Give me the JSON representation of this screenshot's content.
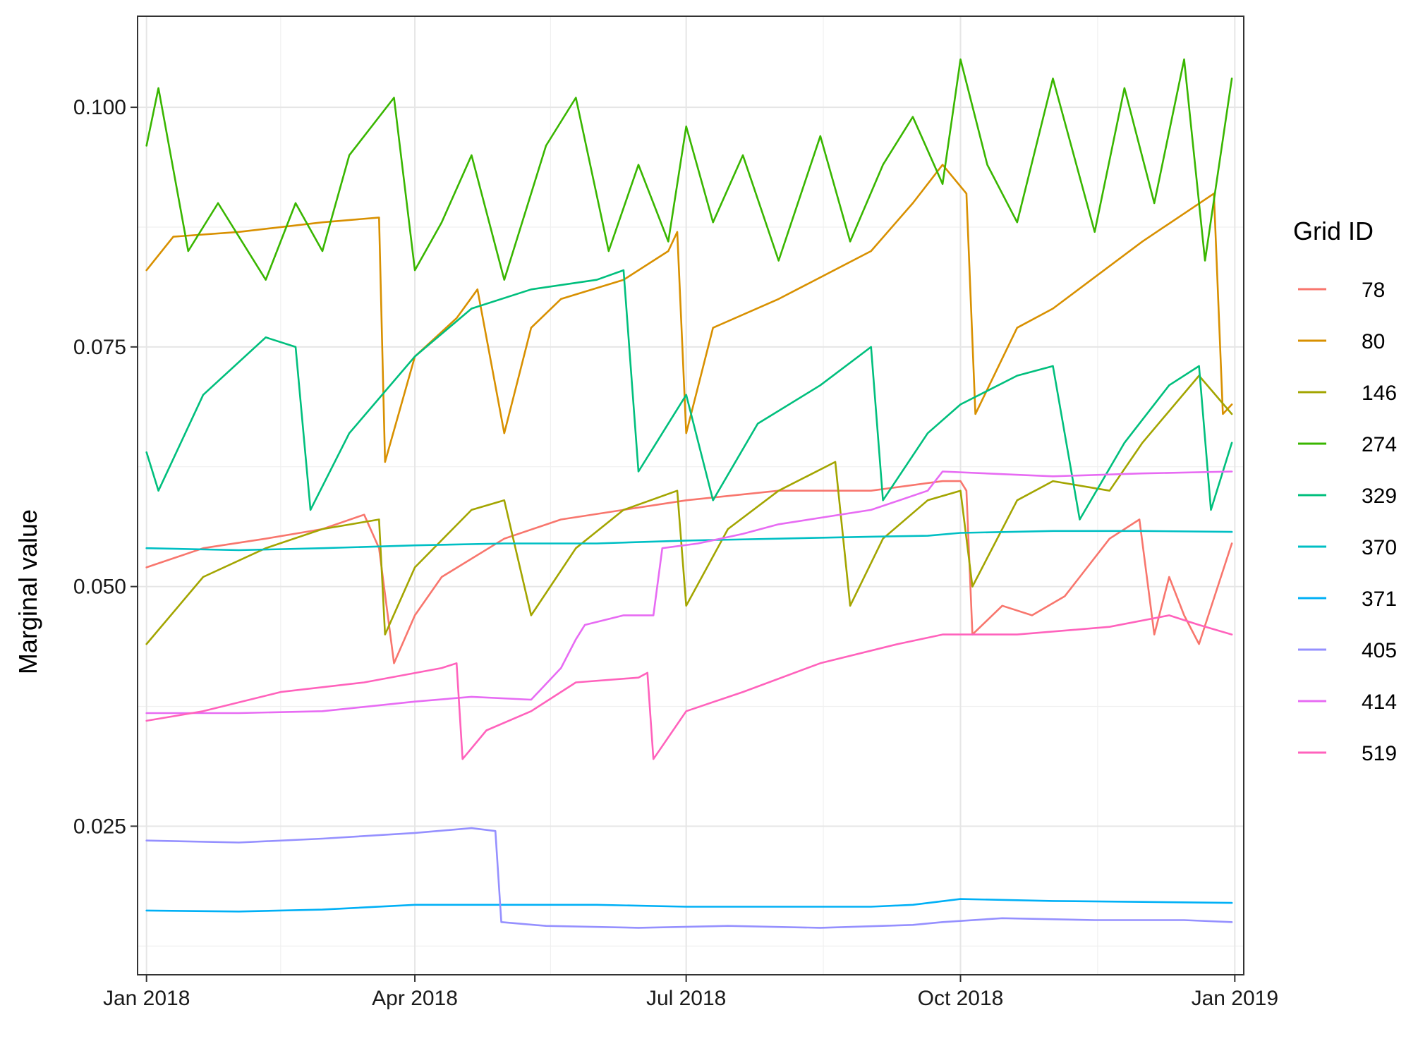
{
  "chart_data": {
    "type": "line",
    "title": "",
    "xlabel": "",
    "ylabel": "Marginal value",
    "x_axis": {
      "type": "date",
      "range": [
        "2017-12-29",
        "2019-01-04"
      ],
      "ticks": [
        {
          "date": "2018-01-01",
          "label": "Jan 2018"
        },
        {
          "date": "2018-04-01",
          "label": "Apr 2018"
        },
        {
          "date": "2018-07-01",
          "label": "Jul 2018"
        },
        {
          "date": "2018-10-01",
          "label": "Oct 2018"
        },
        {
          "date": "2019-01-01",
          "label": "Jan 2019"
        }
      ]
    },
    "y_axis": {
      "range": [
        0.0095,
        0.1095
      ],
      "ticks": [
        {
          "value": 0.025,
          "label": "0.025"
        },
        {
          "value": 0.05,
          "label": "0.050"
        },
        {
          "value": 0.075,
          "label": "0.075"
        },
        {
          "value": 0.1,
          "label": "0.100"
        }
      ]
    },
    "grid": true,
    "legend": {
      "title": "Grid ID",
      "position": "right"
    },
    "series": [
      {
        "name": "78",
        "color": "#F8766D",
        "points": [
          [
            "2018-01-01",
            0.052
          ],
          [
            "2018-01-20",
            0.054
          ],
          [
            "2018-02-10",
            0.055
          ],
          [
            "2018-03-01",
            0.056
          ],
          [
            "2018-03-15",
            0.0575
          ],
          [
            "2018-03-20",
            0.054
          ],
          [
            "2018-03-25",
            0.042
          ],
          [
            "2018-04-01",
            0.047
          ],
          [
            "2018-04-10",
            0.051
          ],
          [
            "2018-05-01",
            0.055
          ],
          [
            "2018-05-20",
            0.057
          ],
          [
            "2018-06-10",
            0.058
          ],
          [
            "2018-07-01",
            0.059
          ],
          [
            "2018-08-01",
            0.06
          ],
          [
            "2018-09-01",
            0.06
          ],
          [
            "2018-09-25",
            0.061
          ],
          [
            "2018-10-01",
            0.061
          ],
          [
            "2018-10-03",
            0.06
          ],
          [
            "2018-10-05",
            0.045
          ],
          [
            "2018-10-15",
            0.048
          ],
          [
            "2018-10-25",
            0.047
          ],
          [
            "2018-11-05",
            0.049
          ],
          [
            "2018-11-20",
            0.055
          ],
          [
            "2018-11-30",
            0.057
          ],
          [
            "2018-12-05",
            0.045
          ],
          [
            "2018-12-10",
            0.051
          ],
          [
            "2018-12-15",
            0.047
          ],
          [
            "2018-12-20",
            0.044
          ],
          [
            "2018-12-31",
            0.0545
          ]
        ]
      },
      {
        "name": "80",
        "color": "#D89000",
        "points": [
          [
            "2018-01-01",
            0.083
          ],
          [
            "2018-01-10",
            0.0865
          ],
          [
            "2018-02-01",
            0.087
          ],
          [
            "2018-03-01",
            0.088
          ],
          [
            "2018-03-20",
            0.0885
          ],
          [
            "2018-03-22",
            0.063
          ],
          [
            "2018-04-01",
            0.074
          ],
          [
            "2018-04-15",
            0.078
          ],
          [
            "2018-04-22",
            0.081
          ],
          [
            "2018-05-01",
            0.066
          ],
          [
            "2018-05-10",
            0.077
          ],
          [
            "2018-05-20",
            0.08
          ],
          [
            "2018-06-10",
            0.082
          ],
          [
            "2018-06-25",
            0.085
          ],
          [
            "2018-06-28",
            0.087
          ],
          [
            "2018-07-01",
            0.066
          ],
          [
            "2018-07-10",
            0.077
          ],
          [
            "2018-08-01",
            0.08
          ],
          [
            "2018-09-01",
            0.085
          ],
          [
            "2018-09-15",
            0.09
          ],
          [
            "2018-09-25",
            0.094
          ],
          [
            "2018-10-03",
            0.091
          ],
          [
            "2018-10-06",
            0.068
          ],
          [
            "2018-10-20",
            0.077
          ],
          [
            "2018-11-01",
            0.079
          ],
          [
            "2018-12-01",
            0.086
          ],
          [
            "2018-12-25",
            0.091
          ],
          [
            "2018-12-28",
            0.068
          ],
          [
            "2018-12-31",
            0.069
          ]
        ]
      },
      {
        "name": "146",
        "color": "#A3A500",
        "points": [
          [
            "2018-01-01",
            0.044
          ],
          [
            "2018-01-20",
            0.051
          ],
          [
            "2018-02-10",
            0.054
          ],
          [
            "2018-03-01",
            0.056
          ],
          [
            "2018-03-20",
            0.057
          ],
          [
            "2018-03-22",
            0.045
          ],
          [
            "2018-04-01",
            0.052
          ],
          [
            "2018-04-20",
            0.058
          ],
          [
            "2018-05-01",
            0.059
          ],
          [
            "2018-05-10",
            0.047
          ],
          [
            "2018-05-25",
            0.054
          ],
          [
            "2018-06-10",
            0.058
          ],
          [
            "2018-06-28",
            0.06
          ],
          [
            "2018-07-01",
            0.048
          ],
          [
            "2018-07-15",
            0.056
          ],
          [
            "2018-08-01",
            0.06
          ],
          [
            "2018-08-20",
            0.063
          ],
          [
            "2018-08-25",
            0.048
          ],
          [
            "2018-09-05",
            0.055
          ],
          [
            "2018-09-20",
            0.059
          ],
          [
            "2018-10-01",
            0.06
          ],
          [
            "2018-10-05",
            0.05
          ],
          [
            "2018-10-20",
            0.059
          ],
          [
            "2018-11-01",
            0.061
          ],
          [
            "2018-11-20",
            0.06
          ],
          [
            "2018-12-01",
            0.065
          ],
          [
            "2018-12-20",
            0.072
          ],
          [
            "2018-12-31",
            0.068
          ]
        ]
      },
      {
        "name": "274",
        "color": "#39B600",
        "points": [
          [
            "2018-01-01",
            0.096
          ],
          [
            "2018-01-05",
            0.102
          ],
          [
            "2018-01-15",
            0.085
          ],
          [
            "2018-01-25",
            0.09
          ],
          [
            "2018-02-10",
            0.082
          ],
          [
            "2018-02-20",
            0.09
          ],
          [
            "2018-03-01",
            0.085
          ],
          [
            "2018-03-10",
            0.095
          ],
          [
            "2018-03-25",
            0.101
          ],
          [
            "2018-04-01",
            0.083
          ],
          [
            "2018-04-10",
            0.088
          ],
          [
            "2018-04-20",
            0.095
          ],
          [
            "2018-05-01",
            0.082
          ],
          [
            "2018-05-15",
            0.096
          ],
          [
            "2018-05-25",
            0.101
          ],
          [
            "2018-06-05",
            0.085
          ],
          [
            "2018-06-15",
            0.094
          ],
          [
            "2018-06-25",
            0.086
          ],
          [
            "2018-07-01",
            0.098
          ],
          [
            "2018-07-10",
            0.088
          ],
          [
            "2018-07-20",
            0.095
          ],
          [
            "2018-08-01",
            0.084
          ],
          [
            "2018-08-15",
            0.097
          ],
          [
            "2018-08-25",
            0.086
          ],
          [
            "2018-09-05",
            0.094
          ],
          [
            "2018-09-15",
            0.099
          ],
          [
            "2018-09-25",
            0.092
          ],
          [
            "2018-10-01",
            0.105
          ],
          [
            "2018-10-10",
            0.094
          ],
          [
            "2018-10-20",
            0.088
          ],
          [
            "2018-11-01",
            0.103
          ],
          [
            "2018-11-15",
            0.087
          ],
          [
            "2018-11-25",
            0.102
          ],
          [
            "2018-12-05",
            0.09
          ],
          [
            "2018-12-15",
            0.105
          ],
          [
            "2018-12-22",
            0.084
          ],
          [
            "2018-12-31",
            0.103
          ]
        ]
      },
      {
        "name": "329",
        "color": "#00BF7D",
        "points": [
          [
            "2018-01-01",
            0.064
          ],
          [
            "2018-01-05",
            0.06
          ],
          [
            "2018-01-20",
            0.07
          ],
          [
            "2018-02-10",
            0.076
          ],
          [
            "2018-02-20",
            0.075
          ],
          [
            "2018-02-25",
            0.058
          ],
          [
            "2018-03-10",
            0.066
          ],
          [
            "2018-04-01",
            0.074
          ],
          [
            "2018-04-20",
            0.079
          ],
          [
            "2018-05-10",
            0.081
          ],
          [
            "2018-06-01",
            0.082
          ],
          [
            "2018-06-10",
            0.083
          ],
          [
            "2018-06-15",
            0.062
          ],
          [
            "2018-06-25",
            0.067
          ],
          [
            "2018-07-01",
            0.07
          ],
          [
            "2018-07-10",
            0.059
          ],
          [
            "2018-07-25",
            0.067
          ],
          [
            "2018-08-15",
            0.071
          ],
          [
            "2018-09-01",
            0.075
          ],
          [
            "2018-09-05",
            0.059
          ],
          [
            "2018-09-20",
            0.066
          ],
          [
            "2018-10-01",
            0.069
          ],
          [
            "2018-10-20",
            0.072
          ],
          [
            "2018-11-01",
            0.073
          ],
          [
            "2018-11-10",
            0.057
          ],
          [
            "2018-11-25",
            0.065
          ],
          [
            "2018-12-10",
            0.071
          ],
          [
            "2018-12-20",
            0.073
          ],
          [
            "2018-12-24",
            0.058
          ],
          [
            "2018-12-31",
            0.065
          ]
        ]
      },
      {
        "name": "370",
        "color": "#00BFC4",
        "points": [
          [
            "2018-01-01",
            0.054
          ],
          [
            "2018-02-01",
            0.0538
          ],
          [
            "2018-03-01",
            0.054
          ],
          [
            "2018-04-01",
            0.0543
          ],
          [
            "2018-05-01",
            0.0545
          ],
          [
            "2018-06-01",
            0.0545
          ],
          [
            "2018-07-01",
            0.0548
          ],
          [
            "2018-08-01",
            0.055
          ],
          [
            "2018-09-01",
            0.0552
          ],
          [
            "2018-09-20",
            0.0553
          ],
          [
            "2018-10-01",
            0.0556
          ],
          [
            "2018-11-01",
            0.0558
          ],
          [
            "2018-12-01",
            0.0558
          ],
          [
            "2018-12-31",
            0.0557
          ]
        ]
      },
      {
        "name": "371",
        "color": "#00B0F6",
        "points": [
          [
            "2018-01-01",
            0.0162
          ],
          [
            "2018-02-01",
            0.0161
          ],
          [
            "2018-03-01",
            0.0163
          ],
          [
            "2018-04-01",
            0.0168
          ],
          [
            "2018-05-01",
            0.0168
          ],
          [
            "2018-06-01",
            0.0168
          ],
          [
            "2018-07-01",
            0.0166
          ],
          [
            "2018-08-01",
            0.0166
          ],
          [
            "2018-09-01",
            0.0166
          ],
          [
            "2018-09-15",
            0.0168
          ],
          [
            "2018-10-01",
            0.0174
          ],
          [
            "2018-11-01",
            0.0172
          ],
          [
            "2018-12-01",
            0.0171
          ],
          [
            "2018-12-31",
            0.017
          ]
        ]
      },
      {
        "name": "405",
        "color": "#9590FF",
        "points": [
          [
            "2018-01-01",
            0.0235
          ],
          [
            "2018-02-01",
            0.0233
          ],
          [
            "2018-03-01",
            0.0237
          ],
          [
            "2018-04-01",
            0.0243
          ],
          [
            "2018-04-20",
            0.0248
          ],
          [
            "2018-04-28",
            0.0245
          ],
          [
            "2018-04-30",
            0.015
          ],
          [
            "2018-05-15",
            0.0146
          ],
          [
            "2018-06-15",
            0.0144
          ],
          [
            "2018-07-15",
            0.0146
          ],
          [
            "2018-08-15",
            0.0144
          ],
          [
            "2018-09-15",
            0.0147
          ],
          [
            "2018-09-25",
            0.015
          ],
          [
            "2018-10-15",
            0.0154
          ],
          [
            "2018-11-15",
            0.0152
          ],
          [
            "2018-12-15",
            0.0152
          ],
          [
            "2018-12-31",
            0.015
          ]
        ]
      },
      {
        "name": "414",
        "color": "#E76BF3",
        "points": [
          [
            "2018-01-01",
            0.0368
          ],
          [
            "2018-02-01",
            0.0368
          ],
          [
            "2018-03-01",
            0.037
          ],
          [
            "2018-04-01",
            0.038
          ],
          [
            "2018-04-20",
            0.0385
          ],
          [
            "2018-05-10",
            0.0382
          ],
          [
            "2018-05-20",
            0.0415
          ],
          [
            "2018-05-25",
            0.0445
          ],
          [
            "2018-05-28",
            0.046
          ],
          [
            "2018-06-10",
            0.047
          ],
          [
            "2018-06-20",
            0.047
          ],
          [
            "2018-06-23",
            0.054
          ],
          [
            "2018-07-05",
            0.0545
          ],
          [
            "2018-07-20",
            0.0555
          ],
          [
            "2018-08-01",
            0.0565
          ],
          [
            "2018-09-01",
            0.058
          ],
          [
            "2018-09-20",
            0.06
          ],
          [
            "2018-09-25",
            0.062
          ],
          [
            "2018-11-01",
            0.0615
          ],
          [
            "2018-12-01",
            0.0618
          ],
          [
            "2018-12-31",
            0.062
          ]
        ]
      },
      {
        "name": "519",
        "color": "#FF62BC",
        "points": [
          [
            "2018-01-01",
            0.036
          ],
          [
            "2018-01-20",
            0.037
          ],
          [
            "2018-02-15",
            0.039
          ],
          [
            "2018-03-15",
            0.04
          ],
          [
            "2018-04-10",
            0.0415
          ],
          [
            "2018-04-15",
            0.042
          ],
          [
            "2018-04-17",
            0.032
          ],
          [
            "2018-04-25",
            0.035
          ],
          [
            "2018-05-10",
            0.037
          ],
          [
            "2018-05-25",
            0.04
          ],
          [
            "2018-06-15",
            0.0405
          ],
          [
            "2018-06-18",
            0.041
          ],
          [
            "2018-06-20",
            0.032
          ],
          [
            "2018-07-01",
            0.037
          ],
          [
            "2018-07-20",
            0.039
          ],
          [
            "2018-08-15",
            0.042
          ],
          [
            "2018-09-10",
            0.044
          ],
          [
            "2018-09-25",
            0.045
          ],
          [
            "2018-10-20",
            0.045
          ],
          [
            "2018-11-20",
            0.0458
          ],
          [
            "2018-12-10",
            0.047
          ],
          [
            "2018-12-20",
            0.046
          ],
          [
            "2018-12-31",
            0.045
          ]
        ]
      }
    ]
  }
}
